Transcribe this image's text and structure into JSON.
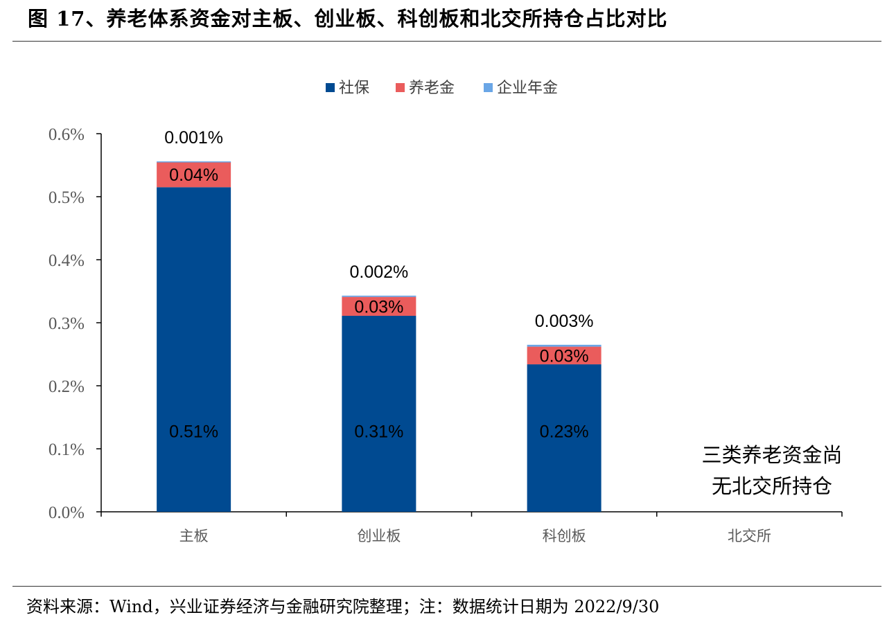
{
  "title": "图 17、养老体系资金对主板、创业板、科创板和北交所持仓占比对比",
  "source": "资料来源：Wind，兴业证券经济与金融研究院整理；注：数据统计日期为 2022/9/30",
  "chart_data": {
    "type": "bar",
    "stacked": true,
    "categories": [
      "主板",
      "创业板",
      "科创板",
      "北交所"
    ],
    "series": [
      {
        "name": "社保",
        "color": "#004a91",
        "values": [
          0.515,
          0.311,
          0.234,
          0
        ],
        "labels": [
          "0.51%",
          "0.31%",
          "0.23%",
          ""
        ]
      },
      {
        "name": "养老金",
        "color": "#ea5c5c",
        "values": [
          0.04,
          0.03,
          0.028,
          0
        ],
        "labels": [
          "0.04%",
          "0.03%",
          "0.03%",
          ""
        ]
      },
      {
        "name": "企业年金",
        "color": "#6aa6e6",
        "values": [
          0.001,
          0.002,
          0.003,
          0
        ],
        "labels": [
          "0.001%",
          "0.002%",
          "0.003%",
          ""
        ]
      }
    ],
    "yticks": [
      "0.0%",
      "0.1%",
      "0.2%",
      "0.3%",
      "0.4%",
      "0.5%",
      "0.6%"
    ],
    "ylim": [
      0,
      0.6
    ],
    "legend_position": "top-center",
    "grid": false,
    "annotation": [
      "三类养老资金尚",
      "无北交所持仓"
    ]
  }
}
